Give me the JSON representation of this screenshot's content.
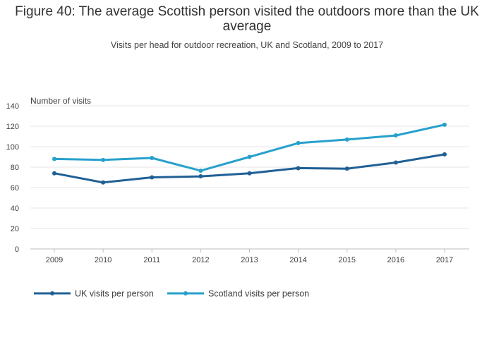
{
  "chart_data": {
    "type": "line",
    "title": "Figure 40: The average Scottish person visited the outdoors more than the UK average",
    "subtitle": "Visits per head for outdoor recreation, UK and Scotland, 2009 to 2017",
    "ylabel": "Number of visits",
    "xlabel": "",
    "ylim": [
      0,
      140
    ],
    "yticks": [
      0,
      20,
      40,
      60,
      80,
      100,
      120,
      140
    ],
    "categories": [
      "2009",
      "2010",
      "2011",
      "2012",
      "2013",
      "2014",
      "2015",
      "2016",
      "2017"
    ],
    "grid": true,
    "legend_position": "bottom-left",
    "series": [
      {
        "name": "UK visits per person",
        "color": "#206095",
        "values": [
          74,
          65,
          70,
          71,
          74,
          79,
          78.5,
          84.5,
          92.5
        ]
      },
      {
        "name": "Scotland visits per person",
        "color": "#27a0cc",
        "values": [
          88,
          87,
          89,
          76.5,
          90,
          103.5,
          107,
          111,
          121.5
        ]
      }
    ]
  }
}
